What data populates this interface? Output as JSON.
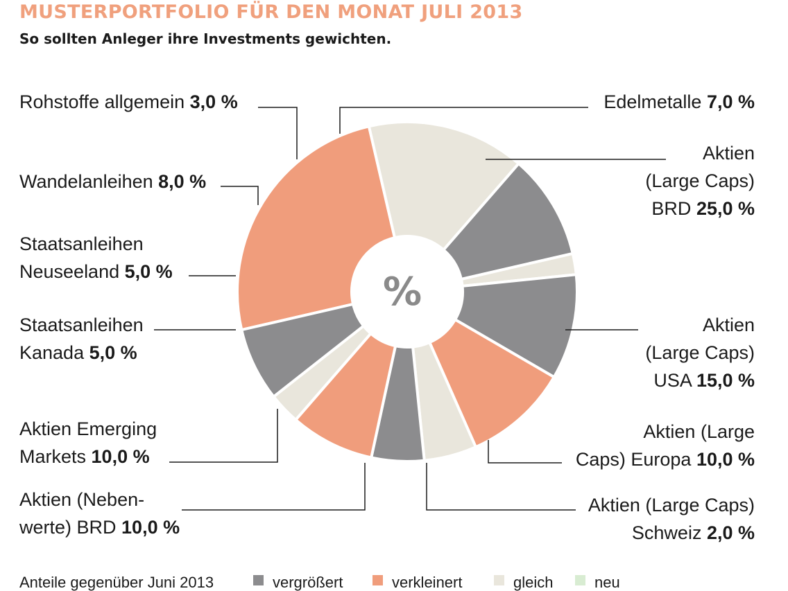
{
  "header": {
    "title": "MUSTERPORTFOLIO FÜR DEN MONAT JULI 2013",
    "subtitle": "So sollten Anleger ihre Investments gewichten."
  },
  "colors": {
    "vergroessert": "#8c8c8e",
    "verkleinert": "#f09d7c",
    "gleich": "#e9e6dc",
    "neu": "#d8ecd2",
    "title": "#f0a07d"
  },
  "chart_data": {
    "type": "pie",
    "center_label": "%",
    "unit": "%",
    "slices": [
      {
        "label_lines": [
          "Aktien",
          "(Large Caps)",
          "BRD"
        ],
        "value": 25.0,
        "value_text": "25,0 %",
        "status": "verkleinert"
      },
      {
        "label_lines": [
          "Aktien",
          "(Large Caps)",
          "USA"
        ],
        "value": 15.0,
        "value_text": "15,0 %",
        "status": "gleich"
      },
      {
        "label_lines": [
          "Aktien (Large",
          "Caps) Europa"
        ],
        "value": 10.0,
        "value_text": "10,0 %",
        "status": "vergroessert"
      },
      {
        "label_lines": [
          "Aktien (Large Caps)",
          "Schweiz"
        ],
        "value": 2.0,
        "value_text": "2,0 %",
        "status": "gleich"
      },
      {
        "label_lines": [
          "Aktien (Neben-",
          "werte) BRD"
        ],
        "value": 10.0,
        "value_text": "10,0 %",
        "status": "vergroessert"
      },
      {
        "label_lines": [
          "Aktien Emerging",
          "Markets"
        ],
        "value": 10.0,
        "value_text": "10,0 %",
        "status": "verkleinert"
      },
      {
        "label_lines": [
          "Staatsanleihen",
          "Kanada"
        ],
        "value": 5.0,
        "value_text": "5,0 %",
        "status": "gleich"
      },
      {
        "label_lines": [
          "Staatsanleihen",
          "Neuseeland"
        ],
        "value": 5.0,
        "value_text": "5,0 %",
        "status": "vergroessert"
      },
      {
        "label_lines": [
          "Wandelanleihen"
        ],
        "value": 8.0,
        "value_text": "8,0 %",
        "status": "verkleinert"
      },
      {
        "label_lines": [
          "Rohstoffe allgemein"
        ],
        "value": 3.0,
        "value_text": "3,0 %",
        "status": "gleich"
      },
      {
        "label_lines": [
          "Edelmetalle"
        ],
        "value": 7.0,
        "value_text": "7,0 %",
        "status": "vergroessert"
      }
    ],
    "legend": {
      "title": "Anteile gegenüber Juni 2013",
      "items": [
        {
          "key": "vergroessert",
          "label": "vergrößert"
        },
        {
          "key": "verkleinert",
          "label": "verkleinert"
        },
        {
          "key": "gleich",
          "label": "gleich"
        },
        {
          "key": "neu",
          "label": "neu"
        }
      ]
    }
  }
}
